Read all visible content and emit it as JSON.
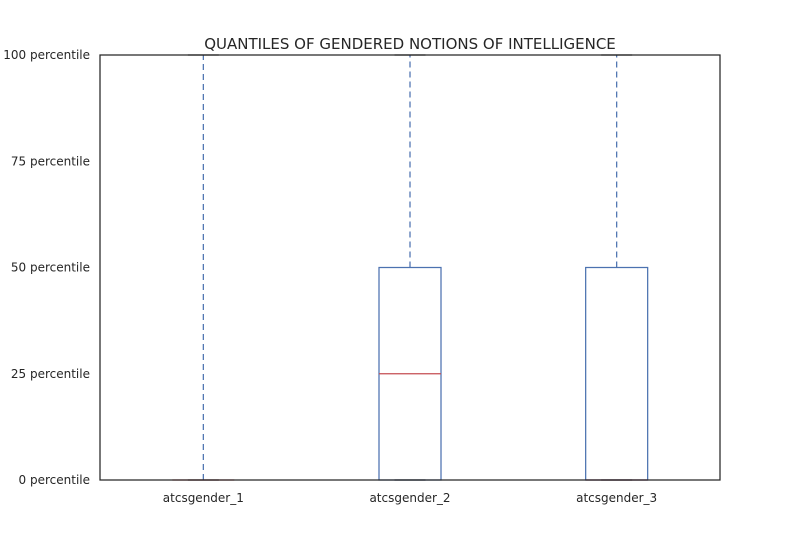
{
  "chart_data": {
    "type": "box",
    "title": "QUANTILES OF GENDERED NOTIONS OF INTELLIGENCE",
    "xlabel": "",
    "ylabel": "",
    "ylim": [
      0,
      100
    ],
    "yticks": [
      0,
      25,
      50,
      75,
      100
    ],
    "ytick_labels": [
      "0 percentile",
      "25 percentile",
      "50 percentile",
      "75 percentile",
      "100 percentile"
    ],
    "categories": [
      "atcsgender_1",
      "atcsgender_2",
      "atcsgender_3"
    ],
    "boxes": [
      {
        "name": "atcsgender_1",
        "min": 0,
        "q1": 0,
        "median": 0,
        "q3": 0,
        "max": 100
      },
      {
        "name": "atcsgender_2",
        "min": 0,
        "q1": 0,
        "median": 25,
        "q3": 50,
        "max": 100
      },
      {
        "name": "atcsgender_3",
        "min": 0,
        "q1": 0,
        "median": 0,
        "q3": 50,
        "max": 100
      }
    ],
    "grid": false,
    "colors": {
      "box": "#4c72b0",
      "whisker": "#4c72b0",
      "median": "#c44e52",
      "axes": "#262626"
    }
  }
}
